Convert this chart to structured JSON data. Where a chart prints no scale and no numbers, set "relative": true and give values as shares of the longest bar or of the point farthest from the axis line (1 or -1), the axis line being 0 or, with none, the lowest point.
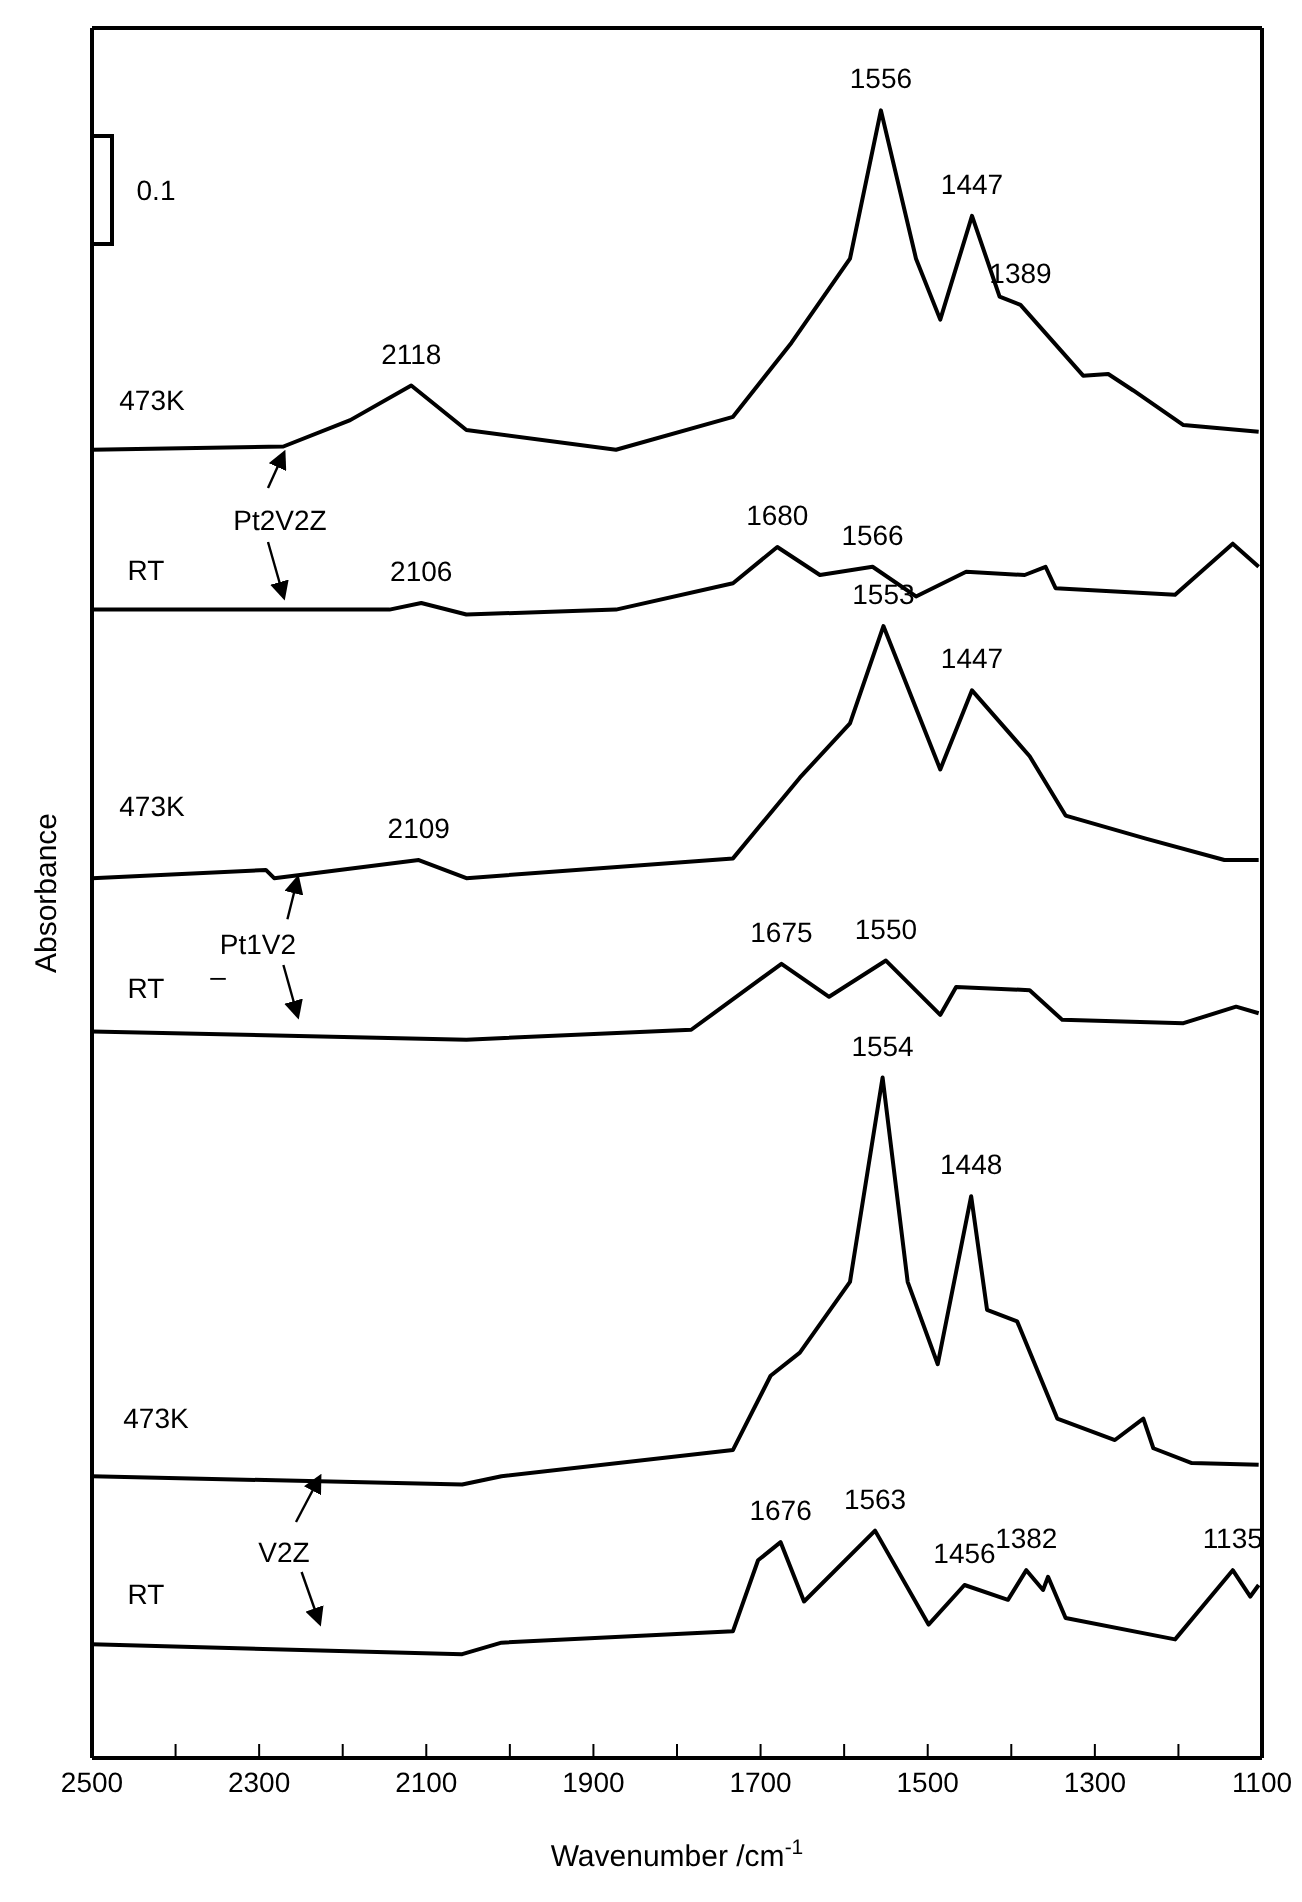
{
  "chart_data": {
    "type": "line",
    "relative": true,
    "xlabel": "Wavenumber /cm$^{-1}$",
    "ylabel": "Absorbance",
    "xlim": [
      2500,
      1100
    ],
    "xticks": [
      2500,
      {
        "value": 2400,
        "label": null
      },
      2300,
      {
        "value": 2200,
        "label": null
      },
      2100,
      {
        "value": 2000,
        "label": null
      },
      1900,
      {
        "value": 1800,
        "label": null
      },
      1700,
      {
        "value": 1600,
        "label": null
      },
      1500,
      {
        "value": 1400,
        "label": null
      },
      1300,
      {
        "value": 1200,
        "label": null
      },
      1100
    ],
    "marker": "none",
    "line_style": "solid",
    "series": [
      {
        "color": "#000000",
        "x": [
          2500,
          2271,
          2191,
          2118,
          2052,
          1873,
          1733,
          1663,
          1593,
          1556,
          1514,
          1485,
          1447,
          1414,
          1389,
          1314,
          1284,
          1254,
          1194,
          1104
        ],
        "values": [
          0.794,
          0.796,
          0.812,
          0.833,
          0.806,
          0.794,
          0.814,
          0.859,
          0.91,
          1.0,
          0.91,
          0.873,
          0.936,
          0.887,
          0.882,
          0.839,
          0.84,
          0.83,
          0.809,
          0.805
        ]
      },
      {
        "color": "#000000",
        "x": [
          2500,
          2144,
          2106,
          2052,
          1873,
          1733,
          1680,
          1629,
          1566,
          1514,
          1454,
          1384,
          1359,
          1347,
          1204,
          1135,
          1104
        ],
        "values": [
          0.697,
          0.697,
          0.701,
          0.694,
          0.697,
          0.713,
          0.735,
          0.718,
          0.723,
          0.705,
          0.72,
          0.718,
          0.723,
          0.71,
          0.706,
          0.737,
          0.723
        ]
      },
      {
        "color": "#000000",
        "x": [
          2500,
          2292,
          2282,
          2109,
          2052,
          1733,
          1653,
          1593,
          1553,
          1485,
          1447,
          1378,
          1335,
          1239,
          1145,
          1104
        ],
        "values": [
          0.534,
          0.539,
          0.534,
          0.545,
          0.534,
          0.546,
          0.595,
          0.628,
          0.687,
          0.6,
          0.648,
          0.608,
          0.572,
          0.558,
          0.545,
          0.545
        ]
      },
      {
        "color": "#000000",
        "x": [
          2500,
          2052,
          1783,
          1675,
          1618,
          1550,
          1485,
          1466,
          1378,
          1339,
          1194,
          1131,
          1104
        ],
        "values": [
          0.441,
          0.436,
          0.442,
          0.482,
          0.462,
          0.484,
          0.451,
          0.468,
          0.466,
          0.448,
          0.446,
          0.456,
          0.452
        ]
      },
      {
        "color": "#000000",
        "x": [
          2500,
          2057,
          2010,
          1733,
          1688,
          1653,
          1593,
          1554,
          1524,
          1488,
          1448,
          1429,
          1393,
          1345,
          1276,
          1242,
          1230,
          1184,
          1104
        ],
        "values": [
          0.171,
          0.166,
          0.171,
          0.187,
          0.232,
          0.246,
          0.289,
          0.413,
          0.289,
          0.239,
          0.341,
          0.272,
          0.265,
          0.206,
          0.193,
          0.206,
          0.188,
          0.179,
          0.178
        ]
      },
      {
        "color": "#000000",
        "x": [
          2500,
          2057,
          2010,
          1733,
          1703,
          1676,
          1648,
          1563,
          1499,
          1456,
          1404,
          1382,
          1362,
          1356,
          1335,
          1204,
          1135,
          1114,
          1104
        ],
        "values": [
          0.069,
          0.063,
          0.07,
          0.077,
          0.12,
          0.131,
          0.095,
          0.138,
          0.081,
          0.105,
          0.096,
          0.114,
          0.102,
          0.11,
          0.085,
          0.072,
          0.114,
          0.098,
          0.105
        ]
      }
    ],
    "annotations": [
      "0.1",
      {
        "text": "2118",
        "x": 2118,
        "y": 0.833
      },
      {
        "text": "1556",
        "x": 1556,
        "y": 1.0
      },
      {
        "text": "1447",
        "x": 1447,
        "y": 0.936
      },
      {
        "text": "1389",
        "x": 1389,
        "y": 0.882
      },
      "473K",
      "Pt2V2Z",
      "RT",
      {
        "text": "2106",
        "x": 2106,
        "y": 0.701
      },
      {
        "text": "1680",
        "x": 1680,
        "y": 0.735
      },
      {
        "text": "1566",
        "x": 1566,
        "y": 0.723
      },
      {
        "text": "1553",
        "x": 1553,
        "y": 0.687
      },
      {
        "text": "1447",
        "x": 1447,
        "y": 0.648
      },
      "473K",
      {
        "text": "2109",
        "x": 2109,
        "y": 0.545
      },
      "Pt1V2",
      "–",
      "RT",
      {
        "text": "1675",
        "x": 1675,
        "y": 0.482
      },
      {
        "text": "1550",
        "x": 1550,
        "y": 0.484
      },
      {
        "text": "1554",
        "x": 1554,
        "y": 0.413
      },
      {
        "text": "1448",
        "x": 1448,
        "y": 0.341
      },
      "473K",
      "V2Z",
      "RT",
      {
        "text": "1676",
        "x": 1676,
        "y": 0.131
      },
      {
        "text": "1563",
        "x": 1563,
        "y": 0.138
      },
      {
        "text": "1456",
        "x": 1456,
        "y": 0.105
      },
      {
        "text": "1382",
        "x": 1382,
        "y": 0.114
      },
      {
        "text": "1135",
        "x": 1135,
        "y": 0.114
      }
    ]
  }
}
